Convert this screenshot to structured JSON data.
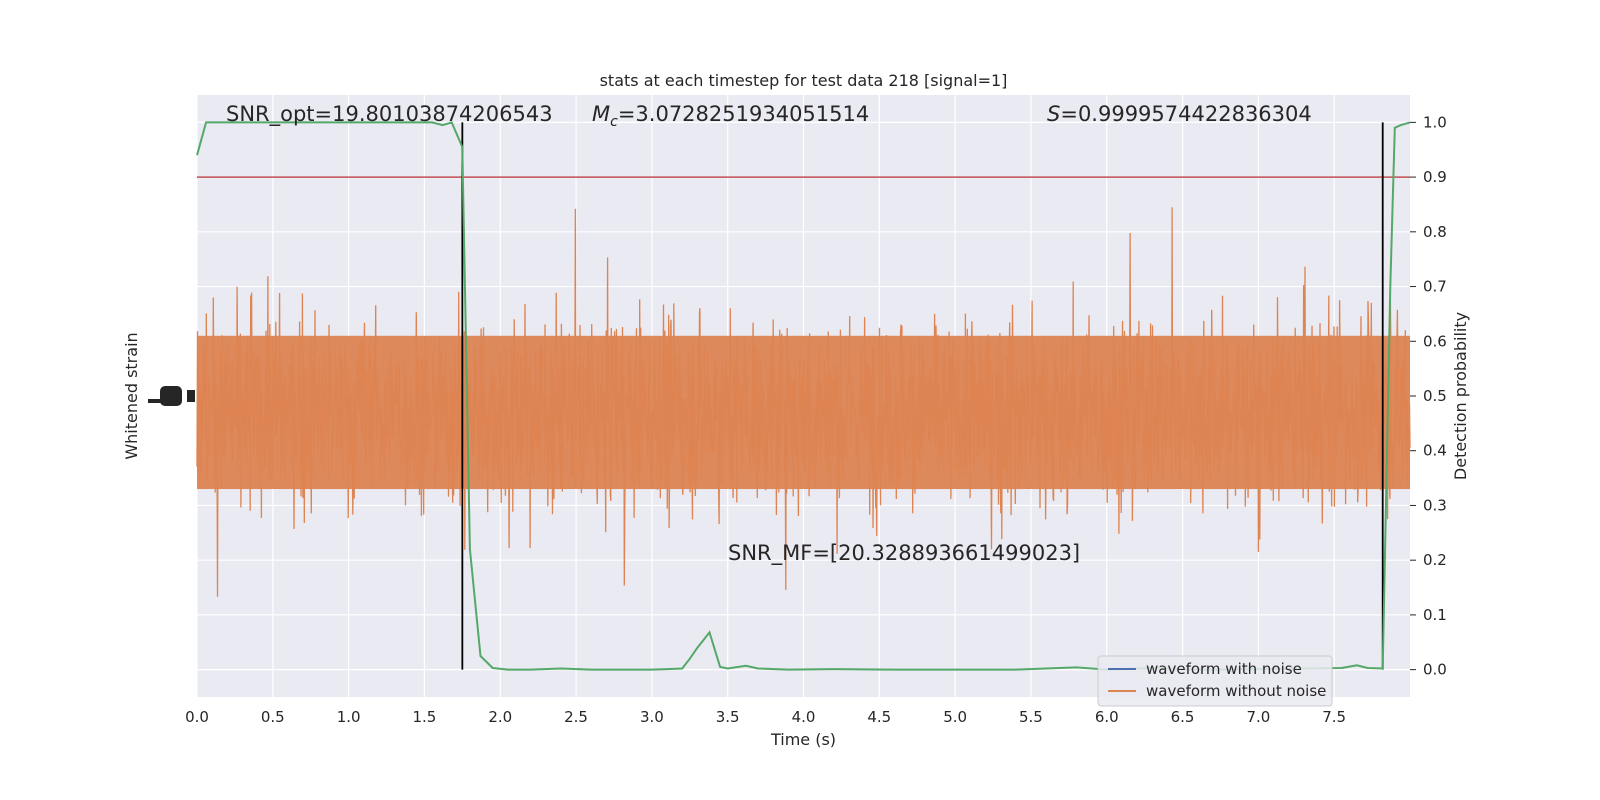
{
  "chart_data": {
    "type": "line",
    "title": "stats at each timestep for test data 218 [signal=1]",
    "xlabel": "Time (s)",
    "ylabel_left": "Whitened strain",
    "ylabel_right": "Detection probability",
    "xlim": [
      0.0,
      8.0
    ],
    "ylim_right": [
      -0.05,
      1.05
    ],
    "xticks": [
      "0.0",
      "0.5",
      "1.0",
      "1.5",
      "2.0",
      "2.5",
      "3.0",
      "3.5",
      "4.0",
      "4.5",
      "5.0",
      "5.5",
      "6.0",
      "6.5",
      "7.0",
      "7.5"
    ],
    "yticks_right": [
      "0.0",
      "0.1",
      "0.2",
      "0.3",
      "0.4",
      "0.5",
      "0.6",
      "0.7",
      "0.8",
      "0.9",
      "1.0"
    ],
    "grid": true,
    "annotations": {
      "snr_opt": "SNR_opt=19.80103874206543",
      "mc_symbol": "M",
      "mc_sub": "c",
      "mc_value": "=3.0728251934051514",
      "s_symbol": "S",
      "s_value": "=0.9999574422836304",
      "snr_mf": "SNR_MF=[20.328893661499023]"
    },
    "threshold": 0.9,
    "vlines": [
      1.75,
      7.82
    ],
    "series": [
      {
        "name": "waveform with noise",
        "color": "#4c72b0",
        "axis": "left"
      },
      {
        "name": "waveform without noise",
        "color": "#dd8452",
        "axis": "left"
      },
      {
        "color": "#55a868",
        "axis": "right",
        "x": [
          0.0,
          0.06,
          0.12,
          0.2,
          0.3,
          0.5,
          0.7,
          1.0,
          1.2,
          1.4,
          1.55,
          1.62,
          1.68,
          1.75,
          1.8,
          1.87,
          1.95,
          2.05,
          2.2,
          2.4,
          2.6,
          2.8,
          3.0,
          3.1,
          3.2,
          3.25,
          3.3,
          3.38,
          3.45,
          3.5,
          3.62,
          3.7,
          3.9,
          4.2,
          4.6,
          5.0,
          5.4,
          5.8,
          6.0,
          6.3,
          6.6,
          7.0,
          7.3,
          7.55,
          7.65,
          7.72,
          7.82,
          7.87,
          7.9,
          7.94,
          8.0
        ],
        "y": [
          0.94,
          1.0,
          1.0,
          1.0,
          1.0,
          1.0,
          1.0,
          1.0,
          1.0,
          1.0,
          1.0,
          0.995,
          1.0,
          0.955,
          0.22,
          0.025,
          0.003,
          0.0,
          0.0,
          0.002,
          0.0,
          0.0,
          0.0,
          0.001,
          0.002,
          0.02,
          0.04,
          0.068,
          0.005,
          0.002,
          0.007,
          0.002,
          0.0,
          0.001,
          0.0,
          0.0,
          0.0,
          0.004,
          0.0,
          0.003,
          0.0,
          0.001,
          0.002,
          0.003,
          0.008,
          0.003,
          0.002,
          0.7,
          0.99,
          0.995,
          1.0
        ]
      }
    ],
    "legend_loc": "lower right"
  }
}
